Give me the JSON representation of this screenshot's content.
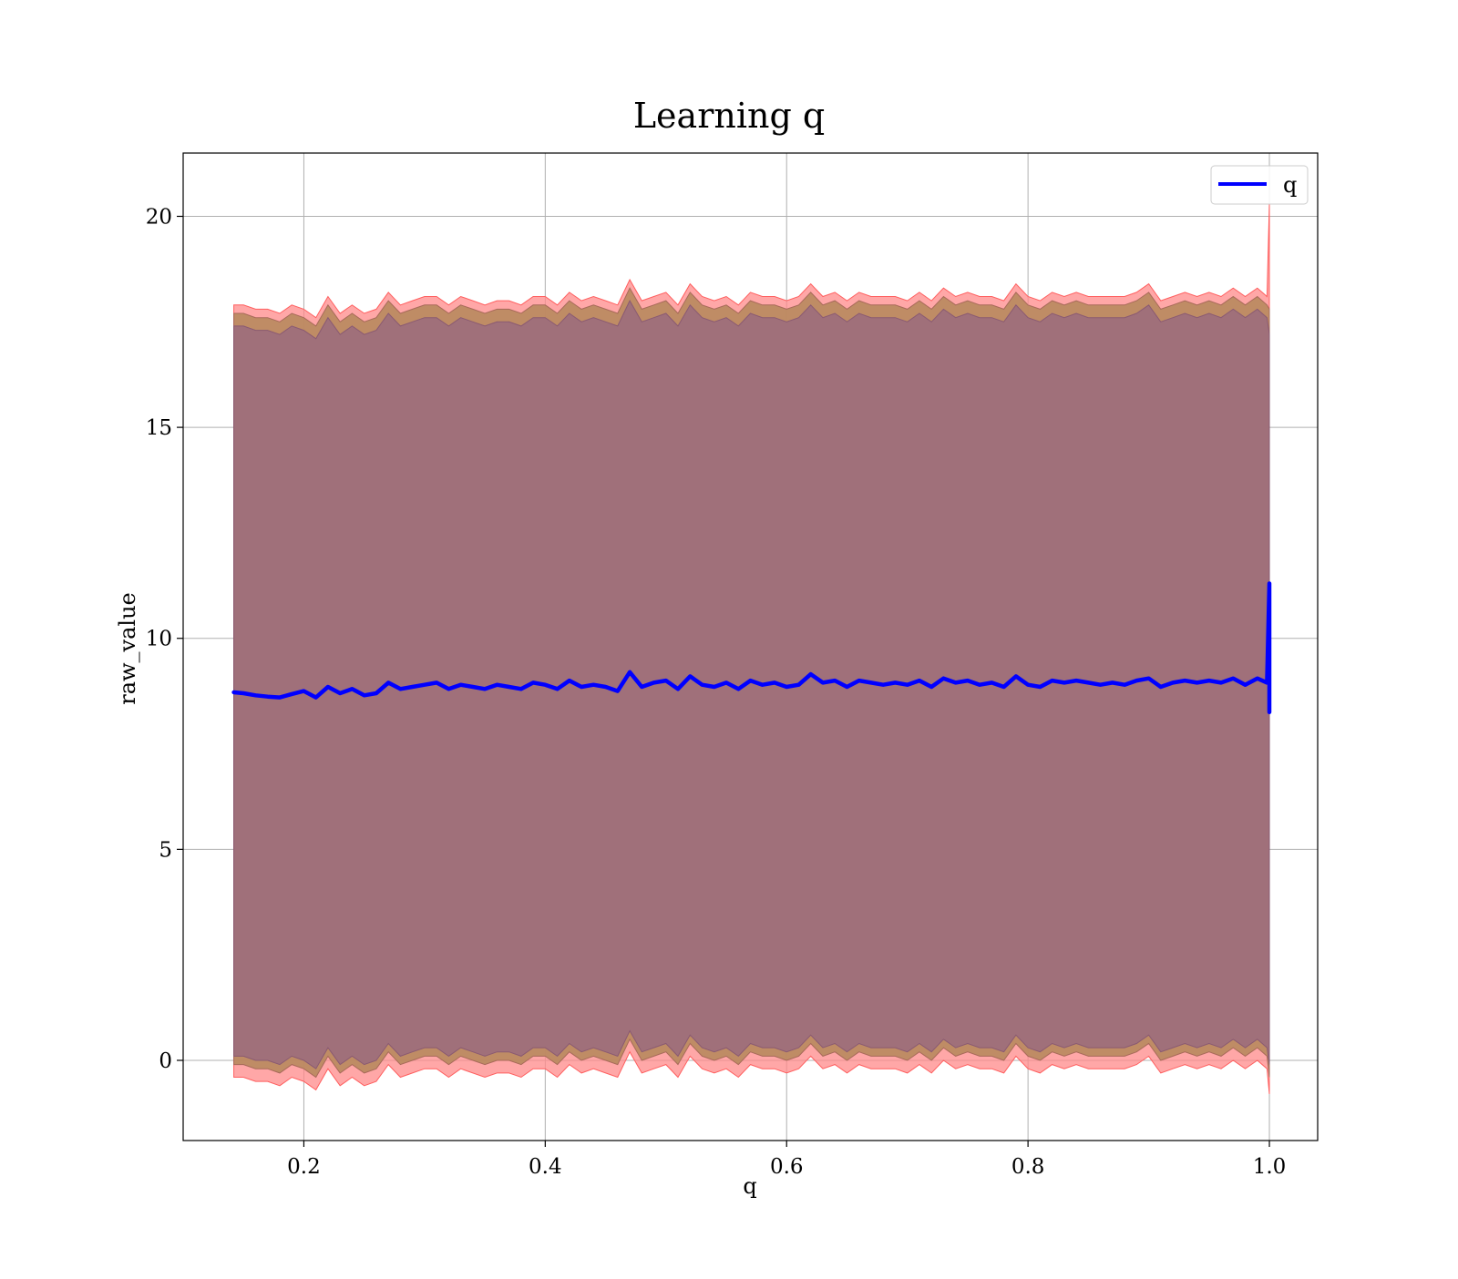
{
  "chart_data": {
    "type": "line",
    "title": "Learning q",
    "xlabel": "q",
    "ylabel": "raw_value",
    "xlim": [
      0.1,
      1.04
    ],
    "ylim": [
      -1.9,
      21.5
    ],
    "x_ticks": [
      0.2,
      0.4,
      0.6,
      0.8,
      1.0
    ],
    "x_tick_labels": [
      "0.2",
      "0.4",
      "0.6",
      "0.8",
      "1.0"
    ],
    "y_ticks": [
      0,
      5,
      10,
      15,
      20
    ],
    "y_tick_labels": [
      "0",
      "5",
      "10",
      "15",
      "20"
    ],
    "grid": true,
    "legend": {
      "position": "top-right",
      "entries": [
        "q"
      ]
    },
    "colors": {
      "line": "#0000ff",
      "outer_band": "#ff8a8a",
      "middle_band": "#b88a5e",
      "inner_band": "#a0707a",
      "grid": "#b0b0b0"
    },
    "series": [
      {
        "name": "q",
        "x": [
          0.142,
          0.15,
          0.16,
          0.17,
          0.18,
          0.19,
          0.2,
          0.21,
          0.22,
          0.23,
          0.24,
          0.25,
          0.26,
          0.27,
          0.28,
          0.29,
          0.3,
          0.31,
          0.32,
          0.33,
          0.34,
          0.35,
          0.36,
          0.37,
          0.38,
          0.39,
          0.4,
          0.41,
          0.42,
          0.43,
          0.44,
          0.45,
          0.46,
          0.47,
          0.48,
          0.49,
          0.5,
          0.51,
          0.52,
          0.53,
          0.54,
          0.55,
          0.56,
          0.57,
          0.58,
          0.59,
          0.6,
          0.61,
          0.62,
          0.63,
          0.64,
          0.65,
          0.66,
          0.67,
          0.68,
          0.69,
          0.7,
          0.71,
          0.72,
          0.73,
          0.74,
          0.75,
          0.76,
          0.77,
          0.78,
          0.79,
          0.8,
          0.81,
          0.82,
          0.83,
          0.84,
          0.85,
          0.86,
          0.87,
          0.88,
          0.89,
          0.9,
          0.91,
          0.92,
          0.93,
          0.94,
          0.95,
          0.96,
          0.97,
          0.98,
          0.99,
          0.998,
          1.0,
          1.0,
          1.0
        ],
        "y": [
          8.72,
          8.7,
          8.65,
          8.62,
          8.6,
          8.68,
          8.75,
          8.6,
          8.85,
          8.7,
          8.8,
          8.65,
          8.7,
          8.95,
          8.8,
          8.85,
          8.9,
          8.95,
          8.8,
          8.9,
          8.85,
          8.8,
          8.9,
          8.85,
          8.8,
          8.95,
          8.9,
          8.8,
          9.0,
          8.85,
          8.9,
          8.85,
          8.75,
          9.2,
          8.85,
          8.95,
          9.0,
          8.8,
          9.1,
          8.9,
          8.85,
          8.95,
          8.8,
          9.0,
          8.9,
          8.95,
          8.85,
          8.9,
          9.15,
          8.95,
          9.0,
          8.85,
          9.0,
          8.95,
          8.9,
          8.95,
          8.9,
          9.0,
          8.85,
          9.05,
          8.95,
          9.0,
          8.9,
          8.95,
          8.85,
          9.1,
          8.9,
          8.85,
          9.0,
          8.95,
          9.0,
          8.95,
          8.9,
          8.95,
          8.9,
          9.0,
          9.05,
          8.85,
          8.95,
          9.0,
          8.95,
          9.0,
          8.95,
          9.05,
          8.9,
          9.05,
          8.95,
          11.3,
          8.25,
          8.9
        ],
        "outer_upper": [
          17.9,
          17.9,
          17.8,
          17.8,
          17.7,
          17.9,
          17.8,
          17.6,
          18.1,
          17.7,
          17.9,
          17.7,
          17.8,
          18.2,
          17.9,
          18.0,
          18.1,
          18.1,
          17.9,
          18.1,
          18.0,
          17.9,
          18.0,
          18.0,
          17.9,
          18.1,
          18.1,
          17.9,
          18.2,
          18.0,
          18.1,
          18.0,
          17.9,
          18.5,
          18.0,
          18.1,
          18.2,
          17.9,
          18.4,
          18.1,
          18.0,
          18.1,
          17.9,
          18.2,
          18.1,
          18.1,
          18.0,
          18.1,
          18.4,
          18.1,
          18.2,
          18.0,
          18.2,
          18.1,
          18.1,
          18.1,
          18.0,
          18.2,
          18.0,
          18.3,
          18.1,
          18.2,
          18.1,
          18.1,
          18.0,
          18.4,
          18.1,
          18.0,
          18.2,
          18.1,
          18.2,
          18.1,
          18.1,
          18.1,
          18.1,
          18.2,
          18.4,
          18.0,
          18.1,
          18.2,
          18.1,
          18.2,
          18.1,
          18.3,
          18.1,
          18.3,
          18.1,
          20.3,
          18.0,
          18.0
        ],
        "outer_lower": [
          -0.4,
          -0.4,
          -0.5,
          -0.5,
          -0.6,
          -0.4,
          -0.5,
          -0.7,
          -0.2,
          -0.6,
          -0.4,
          -0.6,
          -0.5,
          -0.1,
          -0.4,
          -0.3,
          -0.2,
          -0.2,
          -0.4,
          -0.2,
          -0.3,
          -0.4,
          -0.3,
          -0.3,
          -0.4,
          -0.2,
          -0.2,
          -0.4,
          -0.1,
          -0.3,
          -0.2,
          -0.3,
          -0.4,
          0.2,
          -0.3,
          -0.2,
          -0.1,
          -0.4,
          0.1,
          -0.2,
          -0.3,
          -0.2,
          -0.4,
          -0.1,
          -0.2,
          -0.2,
          -0.3,
          -0.2,
          0.1,
          -0.2,
          -0.1,
          -0.3,
          -0.1,
          -0.2,
          -0.2,
          -0.2,
          -0.3,
          -0.1,
          -0.3,
          0.0,
          -0.2,
          -0.1,
          -0.2,
          -0.2,
          -0.3,
          0.1,
          -0.2,
          -0.3,
          -0.1,
          -0.2,
          -0.1,
          -0.2,
          -0.2,
          -0.2,
          -0.2,
          -0.1,
          0.1,
          -0.3,
          -0.2,
          -0.1,
          -0.2,
          -0.1,
          -0.2,
          0.0,
          -0.2,
          0.0,
          -0.2,
          -0.8,
          -0.8,
          -0.8
        ],
        "middle_upper": [
          17.7,
          17.7,
          17.6,
          17.6,
          17.5,
          17.7,
          17.6,
          17.4,
          17.9,
          17.5,
          17.7,
          17.5,
          17.6,
          18.0,
          17.7,
          17.8,
          17.9,
          17.9,
          17.7,
          17.9,
          17.8,
          17.7,
          17.8,
          17.8,
          17.7,
          17.9,
          17.9,
          17.7,
          18.0,
          17.8,
          17.9,
          17.8,
          17.7,
          18.3,
          17.8,
          17.9,
          18.0,
          17.7,
          18.2,
          17.9,
          17.8,
          17.9,
          17.7,
          18.0,
          17.9,
          17.9,
          17.8,
          17.9,
          18.2,
          17.9,
          18.0,
          17.8,
          18.0,
          17.9,
          17.9,
          17.9,
          17.8,
          18.0,
          17.8,
          18.1,
          17.9,
          18.0,
          17.9,
          17.9,
          17.8,
          18.2,
          17.9,
          17.8,
          18.0,
          17.9,
          18.0,
          17.9,
          17.9,
          17.9,
          17.9,
          18.0,
          18.2,
          17.8,
          17.9,
          18.0,
          17.9,
          18.0,
          17.9,
          18.1,
          17.9,
          18.1,
          17.9,
          17.8,
          17.8,
          17.8
        ],
        "middle_lower": [
          -0.1,
          -0.1,
          -0.2,
          -0.2,
          -0.3,
          -0.1,
          -0.2,
          -0.4,
          0.1,
          -0.3,
          -0.1,
          -0.3,
          -0.2,
          0.2,
          -0.1,
          0.0,
          0.1,
          0.1,
          -0.1,
          0.1,
          0.0,
          -0.1,
          0.0,
          0.0,
          -0.1,
          0.1,
          0.1,
          -0.1,
          0.2,
          0.0,
          0.1,
          0.0,
          -0.1,
          0.5,
          0.0,
          0.1,
          0.2,
          -0.1,
          0.4,
          0.1,
          0.0,
          0.1,
          -0.1,
          0.2,
          0.1,
          0.1,
          0.0,
          0.1,
          0.4,
          0.1,
          0.2,
          0.0,
          0.2,
          0.1,
          0.1,
          0.1,
          0.0,
          0.2,
          0.0,
          0.3,
          0.1,
          0.2,
          0.1,
          0.1,
          0.0,
          0.4,
          0.1,
          0.0,
          0.2,
          0.1,
          0.2,
          0.1,
          0.1,
          0.1,
          0.1,
          0.2,
          0.4,
          0.0,
          0.1,
          0.2,
          0.1,
          0.2,
          0.1,
          0.3,
          0.1,
          0.3,
          0.1,
          -0.4,
          -0.4,
          -0.4
        ],
        "inner_upper": [
          17.4,
          17.4,
          17.3,
          17.3,
          17.2,
          17.4,
          17.3,
          17.1,
          17.6,
          17.2,
          17.4,
          17.2,
          17.3,
          17.7,
          17.4,
          17.5,
          17.6,
          17.6,
          17.4,
          17.6,
          17.5,
          17.4,
          17.5,
          17.5,
          17.4,
          17.6,
          17.6,
          17.4,
          17.7,
          17.5,
          17.6,
          17.5,
          17.4,
          18.0,
          17.5,
          17.6,
          17.7,
          17.4,
          17.9,
          17.6,
          17.5,
          17.6,
          17.4,
          17.7,
          17.6,
          17.6,
          17.5,
          17.6,
          17.9,
          17.6,
          17.7,
          17.5,
          17.7,
          17.6,
          17.6,
          17.6,
          17.5,
          17.7,
          17.5,
          17.8,
          17.6,
          17.7,
          17.6,
          17.6,
          17.5,
          17.9,
          17.6,
          17.5,
          17.7,
          17.6,
          17.7,
          17.6,
          17.6,
          17.6,
          17.6,
          17.7,
          17.9,
          17.5,
          17.6,
          17.7,
          17.6,
          17.7,
          17.6,
          17.8,
          17.6,
          17.8,
          17.6,
          17.2,
          17.2,
          17.2
        ],
        "inner_lower": [
          0.1,
          0.1,
          0.0,
          0.0,
          -0.1,
          0.1,
          0.0,
          -0.2,
          0.3,
          -0.1,
          0.1,
          -0.1,
          0.0,
          0.4,
          0.1,
          0.2,
          0.3,
          0.3,
          0.1,
          0.3,
          0.2,
          0.1,
          0.2,
          0.2,
          0.1,
          0.3,
          0.3,
          0.1,
          0.4,
          0.2,
          0.3,
          0.2,
          0.1,
          0.7,
          0.2,
          0.3,
          0.4,
          0.1,
          0.6,
          0.3,
          0.2,
          0.3,
          0.1,
          0.4,
          0.3,
          0.3,
          0.2,
          0.3,
          0.6,
          0.3,
          0.4,
          0.2,
          0.4,
          0.3,
          0.3,
          0.3,
          0.2,
          0.4,
          0.2,
          0.5,
          0.3,
          0.4,
          0.3,
          0.3,
          0.2,
          0.6,
          0.3,
          0.2,
          0.4,
          0.3,
          0.4,
          0.3,
          0.3,
          0.3,
          0.3,
          0.4,
          0.6,
          0.2,
          0.3,
          0.4,
          0.3,
          0.4,
          0.3,
          0.5,
          0.3,
          0.5,
          0.3,
          -0.1,
          -0.1,
          -0.1
        ]
      }
    ]
  }
}
